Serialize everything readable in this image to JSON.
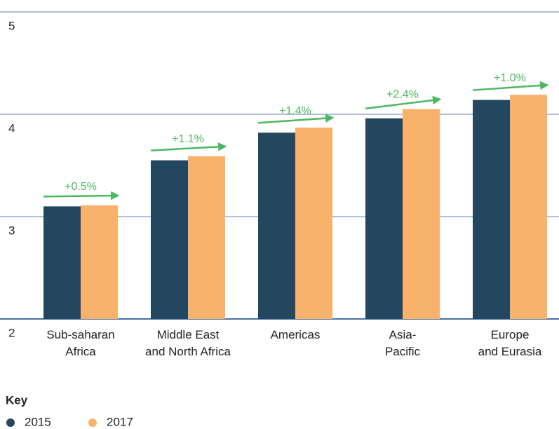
{
  "chart_data": {
    "type": "bar",
    "categories": [
      "Sub-saharan\nAfrica",
      "Middle East\nand North Africa",
      "Americas",
      "Asia-\nPacific",
      "Europe\nand Eurasia"
    ],
    "series": [
      {
        "name": "2015",
        "color": "#23475e",
        "values": [
          3.1,
          3.55,
          3.82,
          3.96,
          4.14
        ]
      },
      {
        "name": "2017",
        "color": "#f9b26b",
        "values": [
          3.11,
          3.59,
          3.87,
          4.05,
          4.19
        ]
      }
    ],
    "annotations": [
      "+0.5%",
      "+1.1%",
      "+1.4%",
      "+2.4%",
      "+1.0%"
    ],
    "ylim": [
      2,
      5
    ],
    "yticks": [
      2,
      3,
      4,
      5
    ],
    "grid": true,
    "legend_title": "Key"
  }
}
